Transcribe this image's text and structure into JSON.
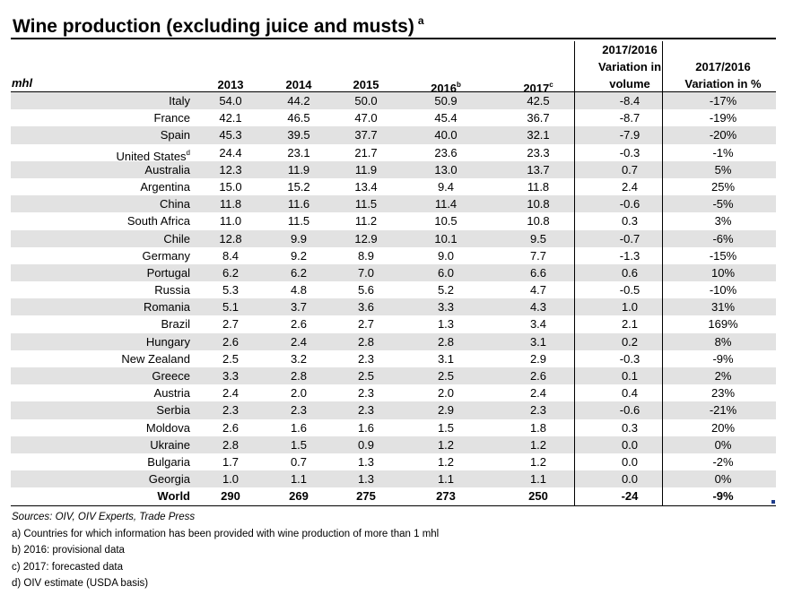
{
  "title": "Wine production (excluding juice and musts)",
  "title_note": "a",
  "unit": "mhl",
  "headers": {
    "y2013": "2013",
    "y2014": "2014",
    "y2015": "2015",
    "y2016": "2016",
    "y2016_note": "b",
    "y2017": "2017",
    "y2017_note": "c",
    "variation_volume": [
      "2017/2016",
      "Variation in",
      "volume"
    ],
    "variation_pct": [
      "2017/2016",
      "Variation in %"
    ]
  },
  "rows": [
    {
      "country": "Italy",
      "note": "",
      "v2013": "54.0",
      "v2014": "44.2",
      "v2015": "50.0",
      "v2016": "50.9",
      "v2017": "42.5",
      "var_volume": "-8.4",
      "var_pct": "-17%"
    },
    {
      "country": "France",
      "note": "",
      "v2013": "42.1",
      "v2014": "46.5",
      "v2015": "47.0",
      "v2016": "45.4",
      "v2017": "36.7",
      "var_volume": "-8.7",
      "var_pct": "-19%"
    },
    {
      "country": "Spain",
      "note": "",
      "v2013": "45.3",
      "v2014": "39.5",
      "v2015": "37.7",
      "v2016": "40.0",
      "v2017": "32.1",
      "var_volume": "-7.9",
      "var_pct": "-20%"
    },
    {
      "country": "United States",
      "note": "d",
      "v2013": "24.4",
      "v2014": "23.1",
      "v2015": "21.7",
      "v2016": "23.6",
      "v2017": "23.3",
      "var_volume": "-0.3",
      "var_pct": "-1%"
    },
    {
      "country": "Australia",
      "note": "",
      "v2013": "12.3",
      "v2014": "11.9",
      "v2015": "11.9",
      "v2016": "13.0",
      "v2017": "13.7",
      "var_volume": "0.7",
      "var_pct": "5%"
    },
    {
      "country": "Argentina",
      "note": "",
      "v2013": "15.0",
      "v2014": "15.2",
      "v2015": "13.4",
      "v2016": "9.4",
      "v2017": "11.8",
      "var_volume": "2.4",
      "var_pct": "25%"
    },
    {
      "country": "China",
      "note": "",
      "v2013": "11.8",
      "v2014": "11.6",
      "v2015": "11.5",
      "v2016": "11.4",
      "v2017": "10.8",
      "var_volume": "-0.6",
      "var_pct": "-5%"
    },
    {
      "country": "South Africa",
      "note": "",
      "v2013": "11.0",
      "v2014": "11.5",
      "v2015": "11.2",
      "v2016": "10.5",
      "v2017": "10.8",
      "var_volume": "0.3",
      "var_pct": "3%"
    },
    {
      "country": "Chile",
      "note": "",
      "v2013": "12.8",
      "v2014": "9.9",
      "v2015": "12.9",
      "v2016": "10.1",
      "v2017": "9.5",
      "var_volume": "-0.7",
      "var_pct": "-6%"
    },
    {
      "country": "Germany",
      "note": "",
      "v2013": "8.4",
      "v2014": "9.2",
      "v2015": "8.9",
      "v2016": "9.0",
      "v2017": "7.7",
      "var_volume": "-1.3",
      "var_pct": "-15%"
    },
    {
      "country": "Portugal",
      "note": "",
      "v2013": "6.2",
      "v2014": "6.2",
      "v2015": "7.0",
      "v2016": "6.0",
      "v2017": "6.6",
      "var_volume": "0.6",
      "var_pct": "10%"
    },
    {
      "country": "Russia",
      "note": "",
      "v2013": "5.3",
      "v2014": "4.8",
      "v2015": "5.6",
      "v2016": "5.2",
      "v2017": "4.7",
      "var_volume": "-0.5",
      "var_pct": "-10%"
    },
    {
      "country": "Romania",
      "note": "",
      "v2013": "5.1",
      "v2014": "3.7",
      "v2015": "3.6",
      "v2016": "3.3",
      "v2017": "4.3",
      "var_volume": "1.0",
      "var_pct": "31%"
    },
    {
      "country": "Brazil",
      "note": "",
      "v2013": "2.7",
      "v2014": "2.6",
      "v2015": "2.7",
      "v2016": "1.3",
      "v2017": "3.4",
      "var_volume": "2.1",
      "var_pct": "169%"
    },
    {
      "country": "Hungary",
      "note": "",
      "v2013": "2.6",
      "v2014": "2.4",
      "v2015": "2.8",
      "v2016": "2.8",
      "v2017": "3.1",
      "var_volume": "0.2",
      "var_pct": "8%"
    },
    {
      "country": "New Zealand",
      "note": "",
      "v2013": "2.5",
      "v2014": "3.2",
      "v2015": "2.3",
      "v2016": "3.1",
      "v2017": "2.9",
      "var_volume": "-0.3",
      "var_pct": "-9%"
    },
    {
      "country": "Greece",
      "note": "",
      "v2013": "3.3",
      "v2014": "2.8",
      "v2015": "2.5",
      "v2016": "2.5",
      "v2017": "2.6",
      "var_volume": "0.1",
      "var_pct": "2%"
    },
    {
      "country": "Austria",
      "note": "",
      "v2013": "2.4",
      "v2014": "2.0",
      "v2015": "2.3",
      "v2016": "2.0",
      "v2017": "2.4",
      "var_volume": "0.4",
      "var_pct": "23%"
    },
    {
      "country": "Serbia",
      "note": "",
      "v2013": "2.3",
      "v2014": "2.3",
      "v2015": "2.3",
      "v2016": "2.9",
      "v2017": "2.3",
      "var_volume": "-0.6",
      "var_pct": "-21%"
    },
    {
      "country": "Moldova",
      "note": "",
      "v2013": "2.6",
      "v2014": "1.6",
      "v2015": "1.6",
      "v2016": "1.5",
      "v2017": "1.8",
      "var_volume": "0.3",
      "var_pct": "20%"
    },
    {
      "country": "Ukraine",
      "note": "",
      "v2013": "2.8",
      "v2014": "1.5",
      "v2015": "0.9",
      "v2016": "1.2",
      "v2017": "1.2",
      "var_volume": "0.0",
      "var_pct": "0%"
    },
    {
      "country": "Bulgaria",
      "note": "",
      "v2013": "1.7",
      "v2014": "0.7",
      "v2015": "1.3",
      "v2016": "1.2",
      "v2017": "1.2",
      "var_volume": "0.0",
      "var_pct": "-2%"
    },
    {
      "country": "Georgia",
      "note": "",
      "v2013": "1.0",
      "v2014": "1.1",
      "v2015": "1.3",
      "v2016": "1.1",
      "v2017": "1.1",
      "var_volume": "0.0",
      "var_pct": "0%"
    }
  ],
  "total": {
    "country": "World",
    "v2013": "290",
    "v2014": "269",
    "v2015": "275",
    "v2016": "273",
    "v2017": "250",
    "var_volume": "-24",
    "var_pct": "-9%"
  },
  "notes": {
    "sources": "Sources: OIV, OIV Experts, Trade Press",
    "a": "a) Countries for which information has been provided with wine production of more than 1 mhl",
    "b": "b) 2016: provisional data",
    "c": "c) 2017: forecasted data",
    "d": "d) OIV estimate (USDA basis)"
  }
}
